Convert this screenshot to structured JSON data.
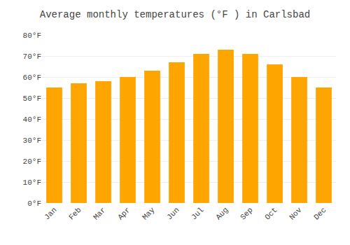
{
  "chart_data": {
    "type": "bar",
    "title": "Average monthly temperatures (°F ) in Carlsbad",
    "categories": [
      "Jan",
      "Feb",
      "Mar",
      "Apr",
      "May",
      "Jun",
      "Jul",
      "Aug",
      "Sep",
      "Oct",
      "Nov",
      "Dec"
    ],
    "values": [
      55,
      57,
      58,
      60,
      63,
      67,
      71,
      73,
      71,
      66,
      60,
      55
    ],
    "color": "#FFA500",
    "ylim": [
      0,
      80
    ],
    "yticks": [
      {
        "value": 0,
        "label": "0°F"
      },
      {
        "value": 10,
        "label": "10°F"
      },
      {
        "value": 20,
        "label": "20°F"
      },
      {
        "value": 30,
        "label": "30°F"
      },
      {
        "value": 40,
        "label": "40°F"
      },
      {
        "value": 50,
        "label": "50°F"
      },
      {
        "value": 60,
        "label": "60°F"
      },
      {
        "value": 70,
        "label": "70°F"
      },
      {
        "value": 80,
        "label": "80°F"
      }
    ],
    "grid": true
  }
}
